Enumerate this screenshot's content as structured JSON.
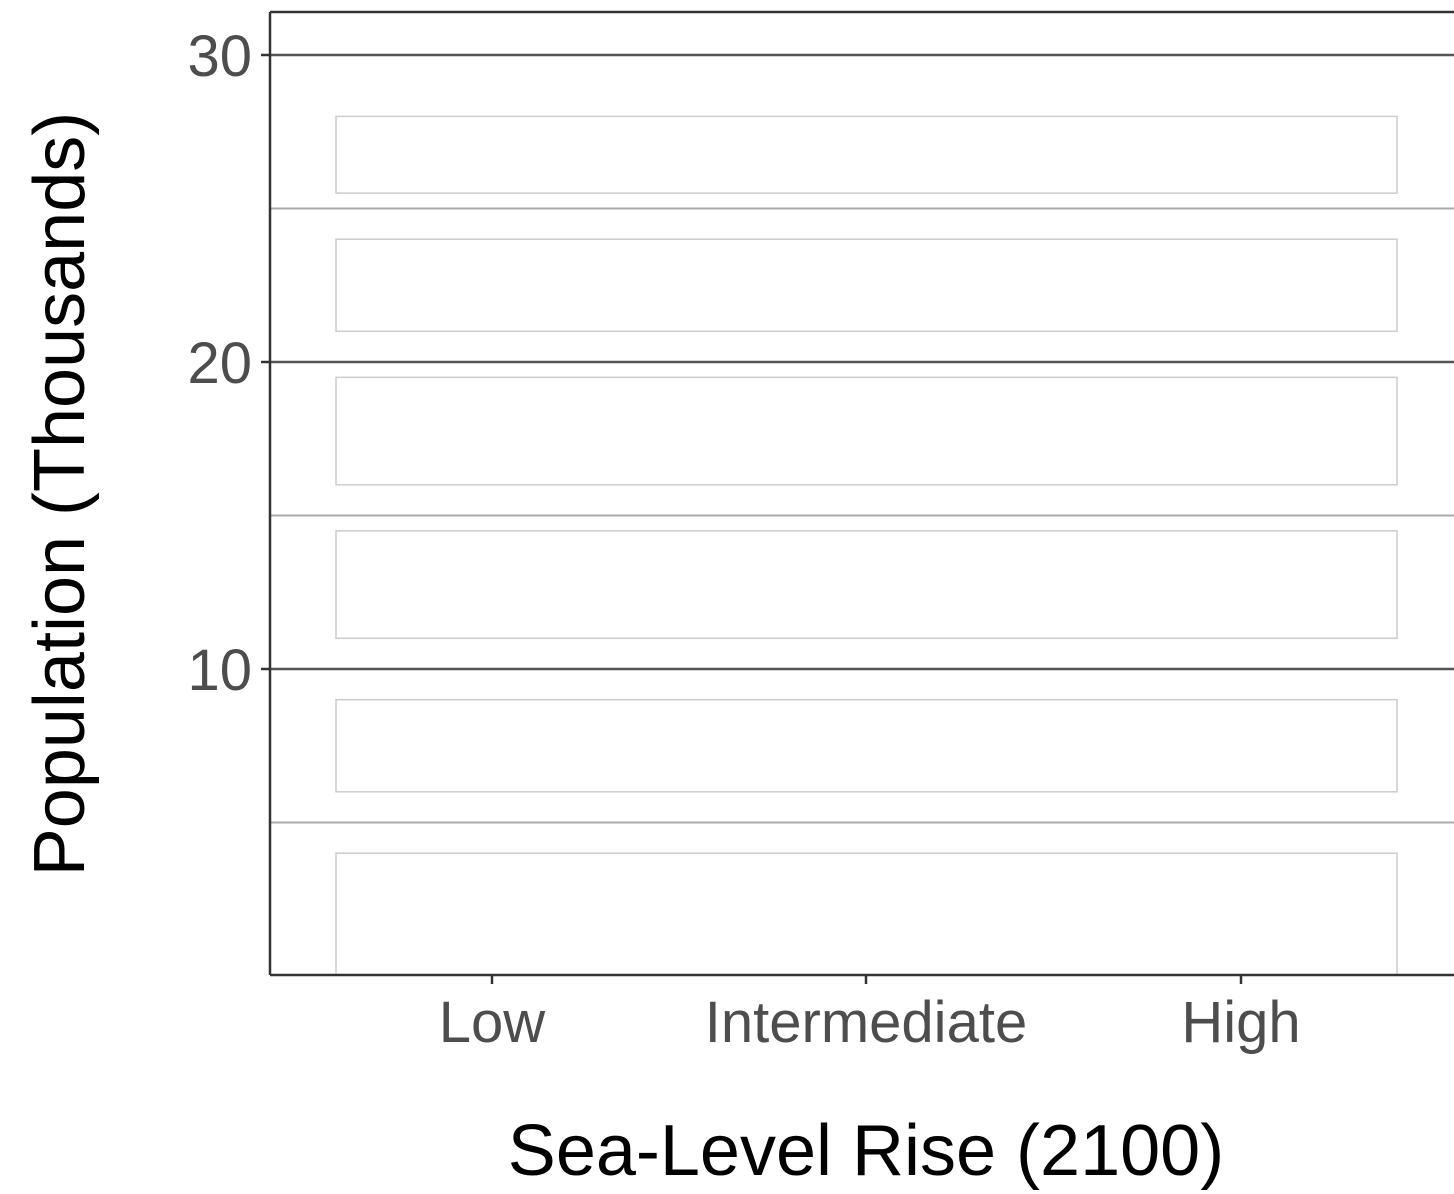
{
  "chart_data": {
    "type": "bar",
    "title": "",
    "xlabel": "Sea-Level Rise (2100)",
    "ylabel": "Population (Thousands)",
    "categories": [
      "Low",
      "Intermediate",
      "High"
    ],
    "ylim": [
      0,
      30
    ],
    "y_ticks": [
      10,
      20,
      30
    ],
    "y_tick_labels": [
      "10",
      "20",
      "30"
    ],
    "y_minor_gridlines": [
      5,
      15,
      25
    ],
    "grid": true,
    "legend": "none",
    "panels_y_ranges": [
      [
        0,
        4
      ],
      [
        6,
        9
      ],
      [
        11,
        14.5
      ],
      [
        16,
        19.5
      ],
      [
        21,
        24
      ],
      [
        25.5,
        28
      ]
    ],
    "colors": {
      "major_grid": "#555555",
      "minor_grid": "#aaaaaa",
      "axis": "#333333",
      "tick_label": "#4d4d4d",
      "panel_border": "#cccccc"
    }
  }
}
